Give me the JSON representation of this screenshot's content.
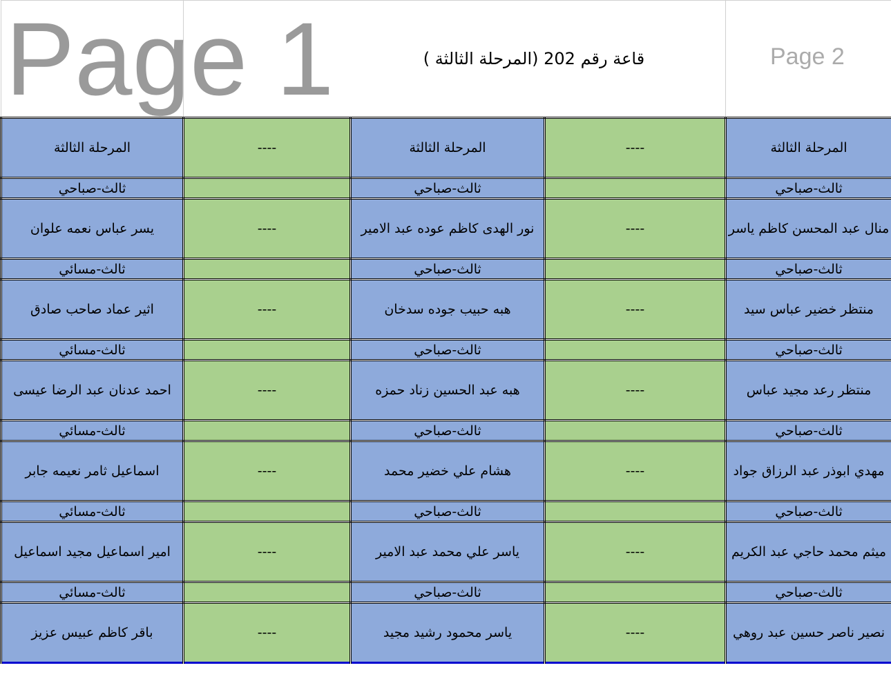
{
  "title": "قاعة رقم 202 (المرحلة الثالثة )",
  "watermarks": {
    "page1": "Page 1",
    "page2": "Page 2"
  },
  "placeholder": "----",
  "colors": {
    "name_cells": "#8eaadb",
    "empty_cells": "#a9d08e",
    "page_break": "#0000d0"
  },
  "columns": [
    {
      "stage": "المرحلة الثالثة",
      "rows": [
        {
          "shift": "ثالث-صباحي",
          "name": "يسر عباس نعمه علوان"
        },
        {
          "shift": "ثالث-مسائي",
          "name": "اثير عماد صاحب صادق"
        },
        {
          "shift": "ثالث-مسائي",
          "name": "احمد عدنان عبد الرضا عيسى"
        },
        {
          "shift": "ثالث-مسائي",
          "name": "اسماعيل ثامر نعيمه جابر"
        },
        {
          "shift": "ثالث-مسائي",
          "name": "امير اسماعيل مجيد اسماعيل"
        },
        {
          "shift": "ثالث-مسائي",
          "name": "باقر كاظم عبيس عزيز"
        }
      ]
    },
    {
      "stage": "المرحلة الثالثة",
      "rows": [
        {
          "shift": "ثالث-صباحي",
          "name": "نور الهدى كاظم عوده عبد الامير"
        },
        {
          "shift": "ثالث-صباحي",
          "name": "هبه حبيب جوده سدخان"
        },
        {
          "shift": "ثالث-صباحي",
          "name": "هبه عبد الحسين زناد حمزه"
        },
        {
          "shift": "ثالث-صباحي",
          "name": "هشام علي خضير محمد"
        },
        {
          "shift": "ثالث-صباحي",
          "name": "ياسر علي محمد عبد الامير"
        },
        {
          "shift": "ثالث-صباحي",
          "name": "ياسر محمود رشيد مجيد"
        }
      ]
    },
    {
      "stage": "المرحلة الثالثة",
      "rows": [
        {
          "shift": "ثالث-صباحي",
          "name": "منال عبد المحسن كاظم ياسر"
        },
        {
          "shift": "ثالث-صباحي",
          "name": "منتظر خضير عباس سيد"
        },
        {
          "shift": "ثالث-صباحي",
          "name": "منتظر رعد مجيد عباس"
        },
        {
          "shift": "ثالث-صباحي",
          "name": "مهدي ابوذر عبد الرزاق جواد"
        },
        {
          "shift": "ثالث-صباحي",
          "name": "ميثم محمد حاجي عبد الكريم"
        },
        {
          "shift": "ثالث-صباحي",
          "name": "نصير ناصر حسين عبد روهي"
        }
      ]
    }
  ]
}
